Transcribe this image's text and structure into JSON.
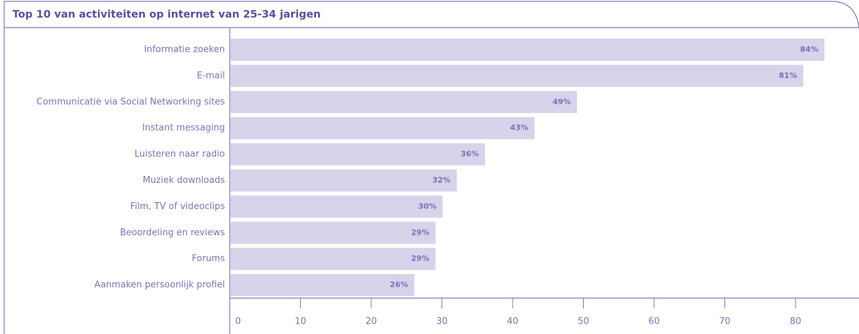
{
  "chart_data": {
    "type": "bar",
    "orientation": "horizontal",
    "title": "Top 10 van activiteiten op internet van 25-34 jarigen",
    "categories": [
      "Informatie zoeken",
      "E-mail",
      "Communicatie via Social Networking sites",
      "Instant messaging",
      "Luisteren naar radio",
      "Muziek downloads",
      "Film, TV of videoclips",
      "Beoordeling en reviews",
      "Forums",
      "Aanmaken persoonlijk profiel"
    ],
    "values": [
      84,
      81,
      49,
      43,
      36,
      32,
      30,
      29,
      29,
      26
    ],
    "value_labels": [
      "84%",
      "81%",
      "49%",
      "43%",
      "36%",
      "32%",
      "30%",
      "29%",
      "29%",
      "26%"
    ],
    "color": "#d6d3ea",
    "xlim": [
      0,
      90
    ],
    "xticks": [
      0,
      10,
      20,
      30,
      40,
      50,
      60,
      70,
      80,
      90
    ]
  }
}
